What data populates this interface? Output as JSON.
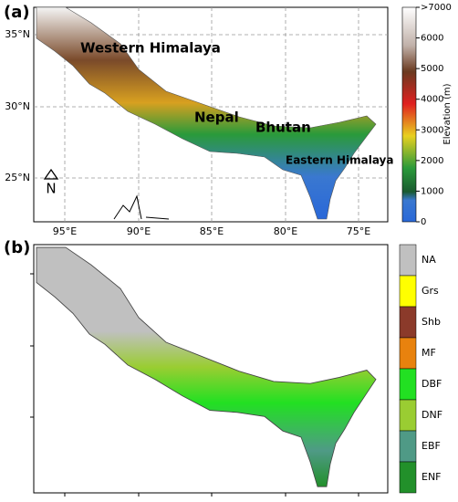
{
  "panel_a": {
    "label": "(a)",
    "lat_labels": [
      "35°N",
      "30°N",
      "25°N"
    ],
    "lon_labels": [
      "95°E",
      "90°E",
      "85°E",
      "80°E",
      "75°E"
    ],
    "regions": [
      "Western Himalaya",
      "Nepal",
      "Bhutan",
      "Eastern Himalaya"
    ],
    "north": "N",
    "colorbar": {
      "title": "Elevation (m)",
      "ticks": [
        ">7000",
        "6000",
        "5000",
        "4000",
        "3000",
        "2000",
        "1000",
        "0"
      ]
    }
  },
  "panel_b": {
    "label": "(b)",
    "legend": [
      {
        "name": "NA",
        "color": "#c0c0c0"
      },
      {
        "name": "Grs",
        "color": "#ffff00"
      },
      {
        "name": "Shb",
        "color": "#8b3a2a"
      },
      {
        "name": "MF",
        "color": "#e8820e"
      },
      {
        "name": "DBF",
        "color": "#22e022"
      },
      {
        "name": "DNF",
        "color": "#9acd32"
      },
      {
        "name": "EBF",
        "color": "#4f9a86"
      },
      {
        "name": "ENF",
        "color": "#22902a"
      }
    ]
  }
}
